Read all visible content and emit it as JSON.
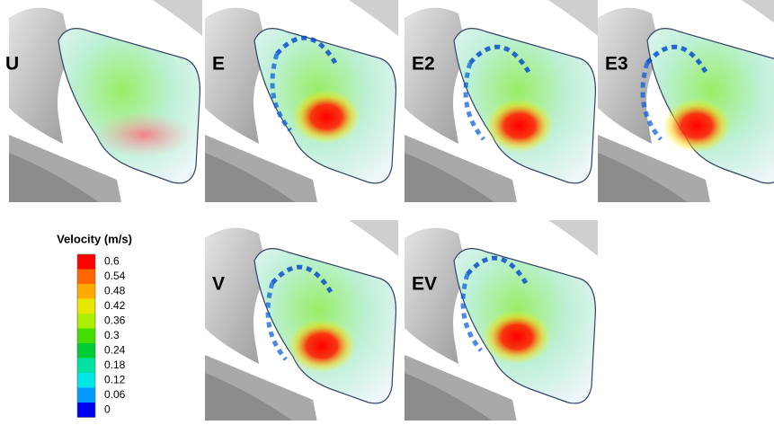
{
  "panels": [
    {
      "label": "U"
    },
    {
      "label": "E"
    },
    {
      "label": "E2"
    },
    {
      "label": "E3"
    },
    {
      "label": "V"
    },
    {
      "label": "EV"
    }
  ],
  "legend": {
    "title": "Velocity (m/s)",
    "ticks": [
      0.6,
      0.54,
      0.48,
      0.42,
      0.36,
      0.3,
      0.24,
      0.18,
      0.12,
      0.06,
      0
    ],
    "colors": [
      "#ff0000",
      "#ff6600",
      "#ffaa00",
      "#e6e600",
      "#aaee00",
      "#44dd00",
      "#00cc33",
      "#00e0a0",
      "#00e6e6",
      "#0099ff",
      "#0000ee"
    ]
  }
}
